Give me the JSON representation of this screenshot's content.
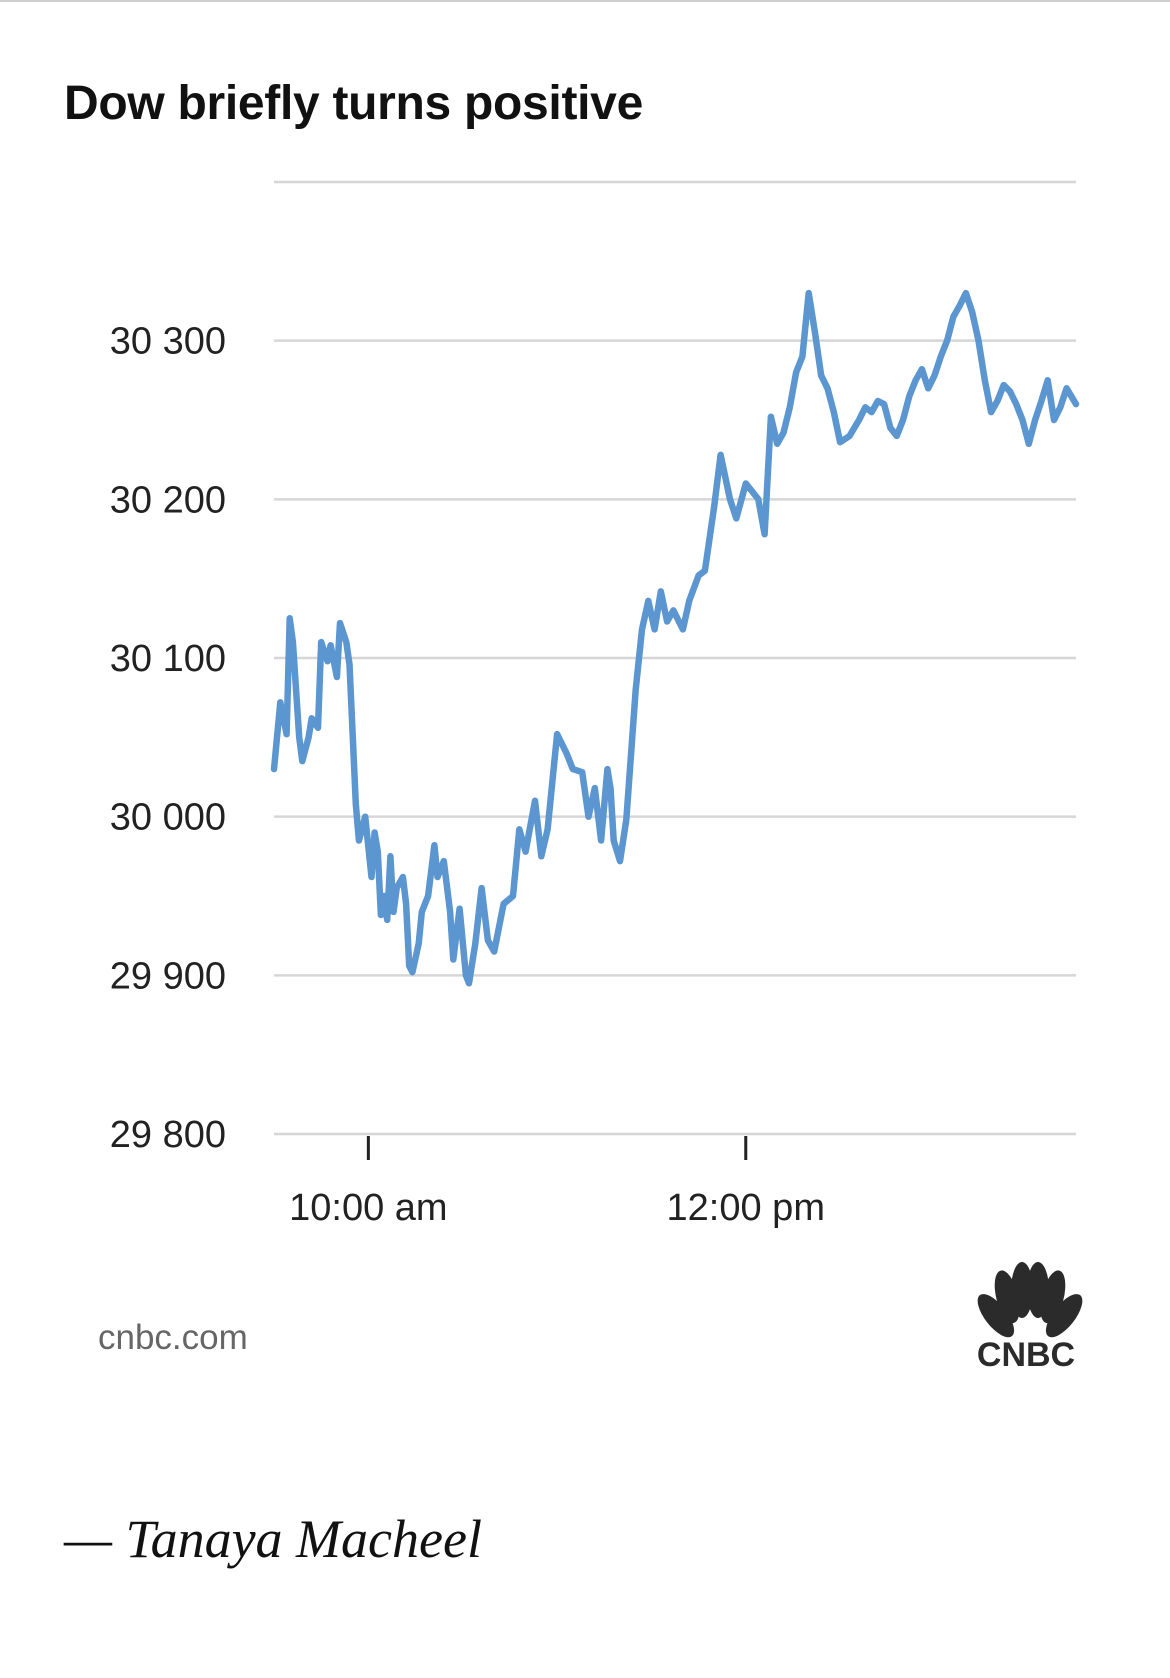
{
  "chart_data": {
    "type": "line",
    "title": "Dow briefly turns positive",
    "ylim": [
      29800,
      30400
    ],
    "yticks": [
      29800,
      29900,
      30000,
      30100,
      30200,
      30300
    ],
    "ytick_labels": [
      "29 800",
      "29 900",
      "30 000",
      "30 100",
      "30 200",
      "30 300"
    ],
    "xlim_minutes": [
      0,
      255
    ],
    "xticks_minutes": [
      30,
      150
    ],
    "xtick_labels": [
      "10:00 am",
      "12:00 pm"
    ],
    "grid": true,
    "line_color": "#5b96d0",
    "series": [
      {
        "x": [
          0,
          2,
          4,
          5,
          6,
          8,
          9,
          11,
          12,
          14,
          15,
          17,
          18,
          20,
          21,
          23,
          24,
          26,
          27,
          29,
          31,
          32,
          33,
          34,
          35,
          36,
          37,
          38,
          39,
          41,
          42,
          43,
          44,
          46,
          47,
          49,
          51,
          52,
          54,
          56,
          57,
          59,
          61,
          62,
          64,
          66,
          68,
          70,
          73,
          76,
          78,
          80,
          83,
          85,
          87,
          90,
          93,
          95,
          98,
          100,
          102,
          104,
          106,
          107,
          108,
          110,
          112,
          115,
          117,
          119,
          121,
          123,
          125,
          127,
          130,
          132,
          135,
          137,
          140,
          142,
          145,
          147,
          150,
          152,
          154,
          156,
          158,
          160,
          162,
          164,
          166,
          168,
          170,
          172,
          174,
          176,
          178,
          180,
          183,
          186,
          188,
          190,
          192,
          194,
          196,
          198,
          200,
          202,
          204,
          206,
          208,
          210,
          212,
          214,
          216,
          218,
          220,
          222,
          224,
          226,
          228,
          230,
          232,
          234,
          236,
          238,
          240,
          242,
          244,
          246,
          248,
          250,
          252,
          255
        ],
        "y": [
          30030,
          30072,
          30052,
          30125,
          30110,
          30050,
          30035,
          30050,
          30062,
          30056,
          30110,
          30098,
          30108,
          30088,
          30122,
          30110,
          30096,
          30008,
          29985,
          30000,
          29962,
          29990,
          29978,
          29938,
          29950,
          29935,
          29975,
          29940,
          29955,
          29962,
          29945,
          29906,
          29902,
          29920,
          29940,
          29950,
          29982,
          29962,
          29972,
          29940,
          29910,
          29942,
          29900,
          29895,
          29920,
          29955,
          29922,
          29915,
          29945,
          29950,
          29992,
          29978,
          30010,
          29975,
          29992,
          30052,
          30040,
          30030,
          30028,
          30000,
          30018,
          29985,
          30030,
          30018,
          29985,
          29972,
          29998,
          30080,
          30118,
          30136,
          30118,
          30142,
          30123,
          30130,
          30118,
          30136,
          30152,
          30155,
          30196,
          30228,
          30200,
          30188,
          30210,
          30205,
          30200,
          30178,
          30252,
          30235,
          30242,
          30258,
          30280,
          30290,
          30330,
          30305,
          30278,
          30270,
          30255,
          30236,
          30240,
          30250,
          30258,
          30255,
          30262,
          30260,
          30245,
          30240,
          30250,
          30265,
          30275,
          30282,
          30270,
          30278,
          30290,
          30300,
          30315,
          30322,
          30330,
          30318,
          30300,
          30275,
          30255,
          30262,
          30272,
          30268,
          30260,
          30250,
          30235,
          30250,
          30262,
          30275,
          30250,
          30258,
          30270,
          30260
        ]
      }
    ]
  },
  "source": "cnbc.com",
  "logo_text": "CNBC",
  "byline": "— Tanaya Macheel"
}
